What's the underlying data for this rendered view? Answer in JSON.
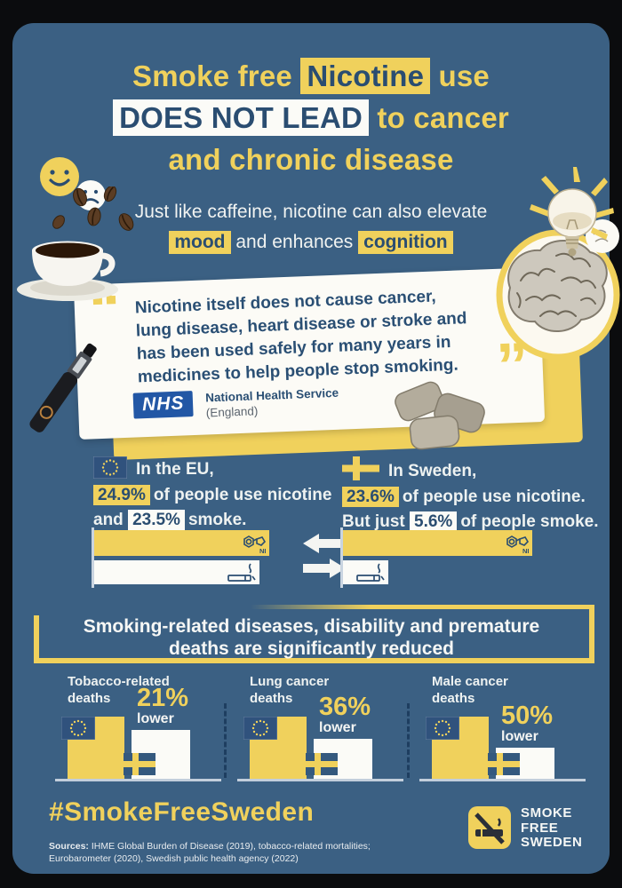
{
  "colors": {
    "panel_blue": "#3b6083",
    "accent_yellow": "#f0d15c",
    "navy": "#2a4d71",
    "card_white": "#fcfbf6",
    "frame_black": "#0b0c0e",
    "nhs_blue": "#2257a5"
  },
  "title": {
    "l1_pre": "Smoke free",
    "l1_hl": "Nicotine",
    "l1_post": "use",
    "l2_hl": "DOES NOT LEAD",
    "l2_post": "to cancer",
    "l3": "and chronic disease"
  },
  "subtitle": {
    "line1": "Just like caffeine, nicotine can also elevate",
    "hl1": "mood",
    "mid": "and enhances",
    "hl2": "cognition"
  },
  "quote": {
    "open_mark": "“",
    "close_mark": "”",
    "lines": [
      "Nicotine itself does not cause cancer,",
      "lung disease, heart disease or stroke and",
      "has been used safely for many years in",
      "medicines to help people stop smoking."
    ],
    "nhs_logo": "NHS",
    "org_name": "National Health Service",
    "org_region": "(England)"
  },
  "stats": {
    "eu": {
      "intro": "In the EU,",
      "nicotine_pct": "24.9%",
      "nicotine_rest": "of people use nicotine",
      "smoke_pre": "and",
      "smoke_pct": "23.5%",
      "smoke_rest": "smoke."
    },
    "sweden": {
      "intro": "In Sweden,",
      "nicotine_pct": "23.6%",
      "nicotine_rest": "of people use nicotine.",
      "smoke_pre": "But just",
      "smoke_pct": "5.6%",
      "smoke_rest": "of people smoke."
    },
    "molecule_label": "NI"
  },
  "banner": {
    "lines": [
      "Smoking-related diseases, disability and premature",
      "deaths are significantly reduced"
    ]
  },
  "reductions": [
    {
      "label_lines": [
        "Tobacco-related",
        "deaths"
      ],
      "pct": "21%",
      "lower_label": "lower",
      "reduction_percent": 21
    },
    {
      "label_lines": [
        "Lung cancer",
        "deaths"
      ],
      "pct": "36%",
      "lower_label": "lower",
      "reduction_percent": 36
    },
    {
      "label_lines": [
        "Male cancer",
        "deaths"
      ],
      "pct": "50%",
      "lower_label": "lower",
      "reduction_percent": 50
    }
  ],
  "footer": {
    "hashtag": "#SmokeFreeSweden",
    "sources_label": "Sources:",
    "sources_lines": [
      "IHME Global Burden of Disease (2019), tobacco-related mortalities;",
      "Eurobarometer (2020), Swedish public health agency (2022)"
    ],
    "logo_lines": [
      "SMOKE",
      "FREE",
      "SWEDEN"
    ]
  },
  "chart_data": [
    {
      "type": "bar",
      "title": "EU: nicotine use vs smoking",
      "orientation": "horizontal",
      "categories": [
        "Use nicotine",
        "Smoke"
      ],
      "values": [
        24.9,
        23.5
      ],
      "unit": "%",
      "colors": [
        "#f0d15c",
        "#ffffff"
      ]
    },
    {
      "type": "bar",
      "title": "Sweden: nicotine use vs smoking",
      "orientation": "horizontal",
      "categories": [
        "Use nicotine",
        "Smoke"
      ],
      "values": [
        23.6,
        5.6
      ],
      "unit": "%",
      "colors": [
        "#f0d15c",
        "#ffffff"
      ]
    },
    {
      "type": "bar",
      "title": "Smoking-related outcomes, Sweden vs EU (EU = 100)",
      "categories": [
        "Tobacco-related deaths",
        "Lung cancer deaths",
        "Male cancer deaths"
      ],
      "series": [
        {
          "name": "EU",
          "values": [
            100,
            100,
            100
          ]
        },
        {
          "name": "Sweden",
          "values": [
            79,
            64,
            50
          ]
        }
      ],
      "annotations": [
        "21% lower",
        "36% lower",
        "50% lower"
      ],
      "legend_position": "on-bar-flags"
    }
  ]
}
